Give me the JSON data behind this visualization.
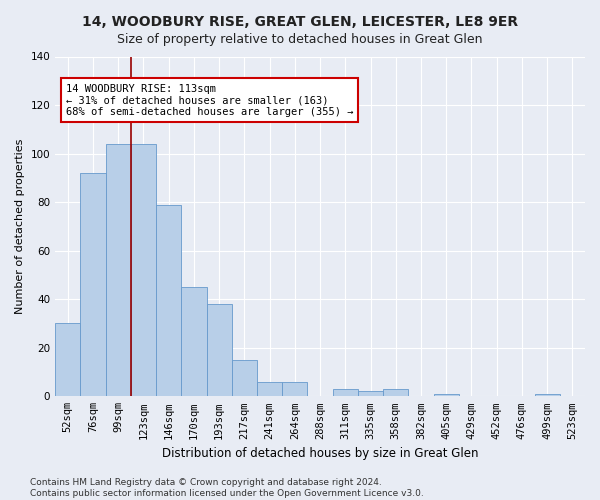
{
  "title": "14, WOODBURY RISE, GREAT GLEN, LEICESTER, LE8 9ER",
  "subtitle": "Size of property relative to detached houses in Great Glen",
  "xlabel": "Distribution of detached houses by size in Great Glen",
  "ylabel": "Number of detached properties",
  "bar_color": "#b8cfe8",
  "bar_edge_color": "#6699cc",
  "background_color": "#e8ecf4",
  "grid_color": "#ffffff",
  "categories": [
    "52sqm",
    "76sqm",
    "99sqm",
    "123sqm",
    "146sqm",
    "170sqm",
    "193sqm",
    "217sqm",
    "241sqm",
    "264sqm",
    "288sqm",
    "311sqm",
    "335sqm",
    "358sqm",
    "382sqm",
    "405sqm",
    "429sqm",
    "452sqm",
    "476sqm",
    "499sqm",
    "523sqm"
  ],
  "values": [
    30,
    92,
    104,
    104,
    79,
    45,
    38,
    15,
    6,
    6,
    0,
    3,
    2,
    3,
    0,
    1,
    0,
    0,
    0,
    1,
    0
  ],
  "ylim": [
    0,
    140
  ],
  "yticks": [
    0,
    20,
    40,
    60,
    80,
    100,
    120,
    140
  ],
  "vline_x": 2.5,
  "vline_color": "#990000",
  "annotation_text": "14 WOODBURY RISE: 113sqm\n← 31% of detached houses are smaller (163)\n68% of semi-detached houses are larger (355) →",
  "annotation_box_color": "#ffffff",
  "annotation_box_edge": "#cc0000",
  "footer": "Contains HM Land Registry data © Crown copyright and database right 2024.\nContains public sector information licensed under the Open Government Licence v3.0.",
  "title_fontsize": 10,
  "subtitle_fontsize": 9,
  "xlabel_fontsize": 8.5,
  "ylabel_fontsize": 8,
  "tick_fontsize": 7.5,
  "annotation_fontsize": 7.5,
  "footer_fontsize": 6.5
}
